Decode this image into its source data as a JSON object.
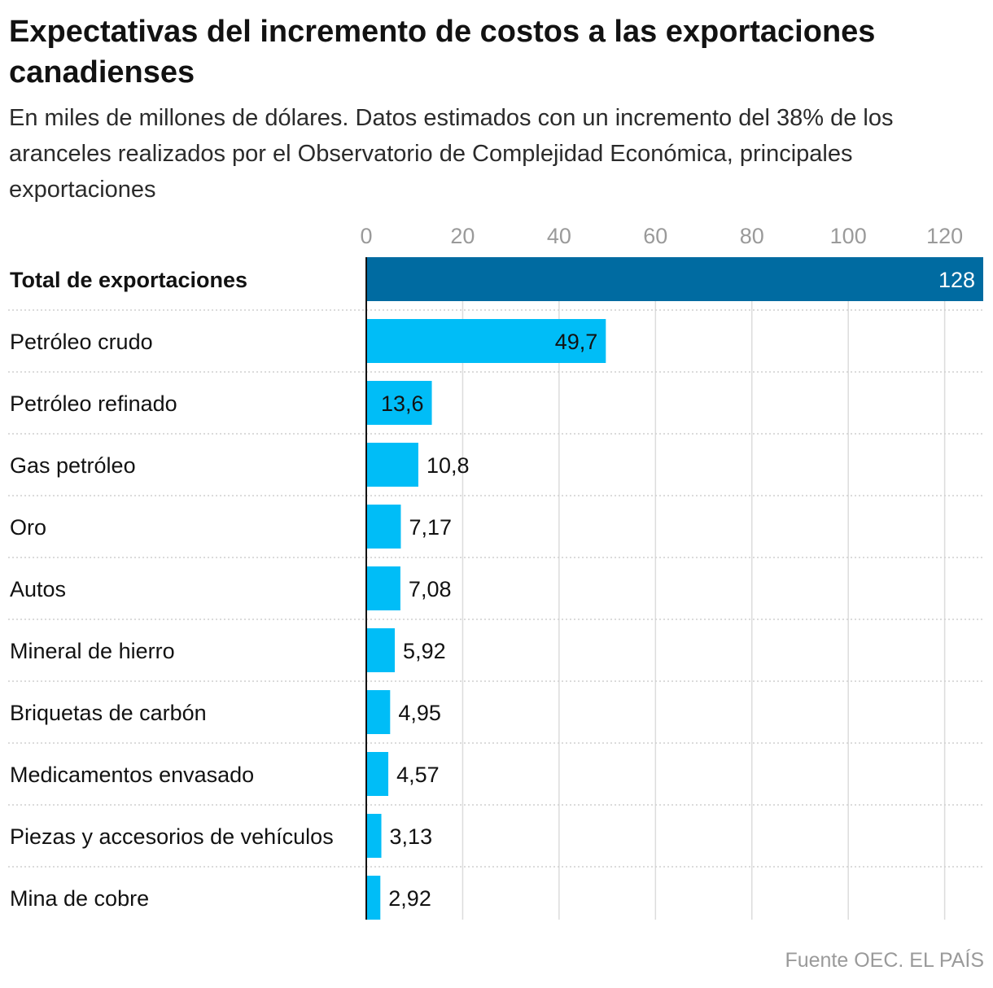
{
  "chart_data": {
    "type": "bar",
    "orientation": "horizontal",
    "title": "Expectativas del incremento de costos a las exportaciones canadienses",
    "subtitle": "En miles de millones de dólares. Datos estimados con un incremento del 38% de los aranceles realizados por el Observatorio de Complejidad Económica, principales exportaciones",
    "categories": [
      "Total de exportaciones",
      "Petróleo crudo",
      "Petróleo refinado",
      "Gas petróleo",
      "Oro",
      "Autos",
      "Mineral de hierro",
      "Briquetas de carbón",
      "Medicamentos envasado",
      "Piezas y accesorios de vehículos",
      "Mina de cobre"
    ],
    "values": [
      128,
      49.7,
      13.6,
      10.8,
      7.17,
      7.08,
      5.92,
      4.95,
      4.57,
      3.13,
      2.92
    ],
    "value_labels": [
      "128",
      "49,7",
      "13,6",
      "10,8",
      "7,17",
      "7,08",
      "5,92",
      "4,95",
      "4,57",
      "3,13",
      "2,92"
    ],
    "highlight_index": 0,
    "xlim": [
      0,
      128
    ],
    "xticks": [
      0,
      20,
      40,
      60,
      80,
      100,
      120
    ],
    "xtick_labels": [
      "0",
      "20",
      "40",
      "60",
      "80",
      "100",
      "120"
    ],
    "xlabel": "",
    "ylabel": "",
    "grid": true,
    "colors": {
      "highlight": "#006ba1",
      "bar": "#00bdf7",
      "grid": "#dcdcdc",
      "separator": "#cfcfcf",
      "axis": "#121212",
      "label_on_highlight": "#ffffff",
      "label": "#121212"
    }
  },
  "source": "Fuente OEC. EL PAÍS"
}
